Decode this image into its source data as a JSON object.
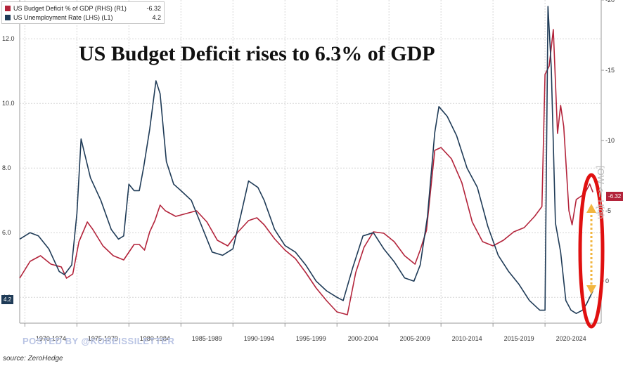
{
  "legend": {
    "deficit_label": "US Budget Deficit % of GDP (RHS) (R1)",
    "deficit_value": "-6.32",
    "unemployment_label": "US Unemployment Rate (LHS) (L1)",
    "unemployment_value": "4.2"
  },
  "headline": "US Budget Deficit rises to 6.3% of GDP",
  "watermark": "POSTED BY @KOBEISSILETTER",
  "source": "source: ZeroHedge",
  "side_note": "[OW <= H[qh",
  "left_tag": "4.2",
  "right_tag": "-6.32",
  "colors": {
    "unemployment": "#1f3b57",
    "deficit": "#b3243b",
    "highlight_ellipse": "#e01010",
    "highlight_arrow": "#f2b640",
    "grid": "#d6d6d6"
  },
  "chart_data": {
    "type": "line",
    "x_tick_labels": [
      "1970-1974",
      "1975-1979",
      "1980-1984",
      "1985-1989",
      "1990-1994",
      "1995-1999",
      "2000-2004",
      "2005-2009",
      "2010-2014",
      "2015-2019",
      "2020-2024"
    ],
    "xlim": [
      1969.5,
      2025.4
    ],
    "left_axis": {
      "ticks": [
        "4.0",
        "6.0",
        "8.0",
        "10.0",
        "12.0"
      ],
      "ylim": [
        3.2,
        13.2
      ]
    },
    "right_axis": {
      "ticks": [
        "-20",
        "-15",
        "-10",
        "-5",
        "0"
      ],
      "ylim": [
        3,
        -20
      ],
      "inverted": true
    },
    "series": [
      {
        "name": "US Unemployment Rate (LHS) (L1)",
        "axis": "left",
        "x": [
          1969.5,
          1970.5,
          1971.3,
          1972.3,
          1973.3,
          1973.8,
          1974.5,
          1975.0,
          1975.4,
          1976.3,
          1977.3,
          1978.3,
          1979.0,
          1979.5,
          1980.0,
          1980.5,
          1981.0,
          1981.4,
          1982.0,
          1982.6,
          1983.0,
          1983.6,
          1984.3,
          1985.0,
          1986.0,
          1987.0,
          1988.0,
          1989.0,
          1990.0,
          1990.8,
          1991.5,
          1992.4,
          1993.0,
          1994.0,
          1995.0,
          1996.0,
          1997.0,
          1998.0,
          1999.0,
          2000.0,
          2000.6,
          2001.5,
          2002.5,
          2003.5,
          2004.5,
          2005.5,
          2006.5,
          2007.4,
          2008.0,
          2008.7,
          2009.4,
          2009.8,
          2010.6,
          2011.5,
          2012.5,
          2013.5,
          2014.5,
          2015.5,
          2016.5,
          2017.5,
          2018.5,
          2019.5,
          2020.0,
          2020.28,
          2020.6,
          2021.0,
          2021.5,
          2022.0,
          2022.5,
          2023.0,
          2023.6,
          2024.0,
          2024.6
        ],
        "values": [
          5.8,
          6.0,
          5.9,
          5.5,
          4.8,
          4.7,
          5.0,
          6.6,
          8.9,
          7.7,
          7.0,
          6.1,
          5.8,
          5.9,
          7.5,
          7.3,
          7.3,
          8.0,
          9.2,
          10.7,
          10.3,
          8.2,
          7.5,
          7.3,
          7.0,
          6.2,
          5.4,
          5.3,
          5.5,
          6.6,
          7.6,
          7.4,
          7.0,
          6.1,
          5.6,
          5.4,
          5.0,
          4.5,
          4.2,
          4.0,
          3.9,
          4.9,
          5.9,
          6.0,
          5.5,
          5.1,
          4.6,
          4.5,
          5.0,
          6.5,
          9.1,
          9.9,
          9.6,
          9.0,
          8.0,
          7.4,
          6.2,
          5.3,
          4.8,
          4.4,
          3.9,
          3.6,
          3.6,
          13.0,
          11.1,
          6.3,
          5.4,
          3.9,
          3.6,
          3.5,
          3.6,
          3.8,
          4.2
        ]
      },
      {
        "name": "US Budget Deficit % of GDP (RHS) (R1)",
        "axis": "right",
        "x": [
          1969.5,
          1970.5,
          1971.5,
          1972.5,
          1973.5,
          1974.0,
          1974.6,
          1975.2,
          1976.0,
          1976.5,
          1977.5,
          1978.5,
          1979.5,
          1980.5,
          1981.0,
          1981.5,
          1982.0,
          1982.5,
          1983.0,
          1983.5,
          1984.5,
          1985.5,
          1986.5,
          1987.5,
          1988.5,
          1989.5,
          1990.5,
          1991.5,
          1992.3,
          1993.0,
          1994.0,
          1995.0,
          1996.0,
          1997.0,
          1998.0,
          1999.0,
          2000.0,
          2001.0,
          2001.8,
          2002.6,
          2003.5,
          2004.5,
          2005.5,
          2006.5,
          2007.5,
          2008.0,
          2008.6,
          2009.4,
          2010.0,
          2011.0,
          2012.0,
          2013.0,
          2014.0,
          2015.0,
          2016.0,
          2017.0,
          2018.0,
          2019.0,
          2019.7,
          2020.0,
          2020.4,
          2020.8,
          2021.2,
          2021.5,
          2021.8,
          2022.3,
          2022.6,
          2023.0,
          2023.4,
          2023.8,
          2024.3,
          2024.6
        ],
        "values": [
          -0.2,
          -1.4,
          -1.8,
          -1.2,
          -1.0,
          -0.2,
          -0.5,
          -2.8,
          -4.2,
          -3.7,
          -2.5,
          -1.8,
          -1.5,
          -2.6,
          -2.6,
          -2.2,
          -3.5,
          -4.3,
          -5.4,
          -5.0,
          -4.6,
          -4.8,
          -5.0,
          -4.2,
          -2.9,
          -2.5,
          -3.5,
          -4.3,
          -4.5,
          -4.0,
          -3.0,
          -2.2,
          -1.6,
          -0.6,
          0.5,
          1.4,
          2.2,
          2.4,
          -0.6,
          -2.4,
          -3.5,
          -3.4,
          -2.8,
          -1.8,
          -1.2,
          -2.2,
          -3.6,
          -9.3,
          -9.5,
          -8.7,
          -7.0,
          -4.2,
          -2.8,
          -2.5,
          -2.9,
          -3.5,
          -3.8,
          -4.6,
          -5.3,
          -14.7,
          -15.3,
          -17.9,
          -10.5,
          -12.5,
          -11.0,
          -5.0,
          -4.0,
          -5.8,
          -6.0,
          -6.2,
          -6.9,
          -6.32
        ]
      }
    ],
    "grid": true,
    "legend_position": "top-left"
  }
}
